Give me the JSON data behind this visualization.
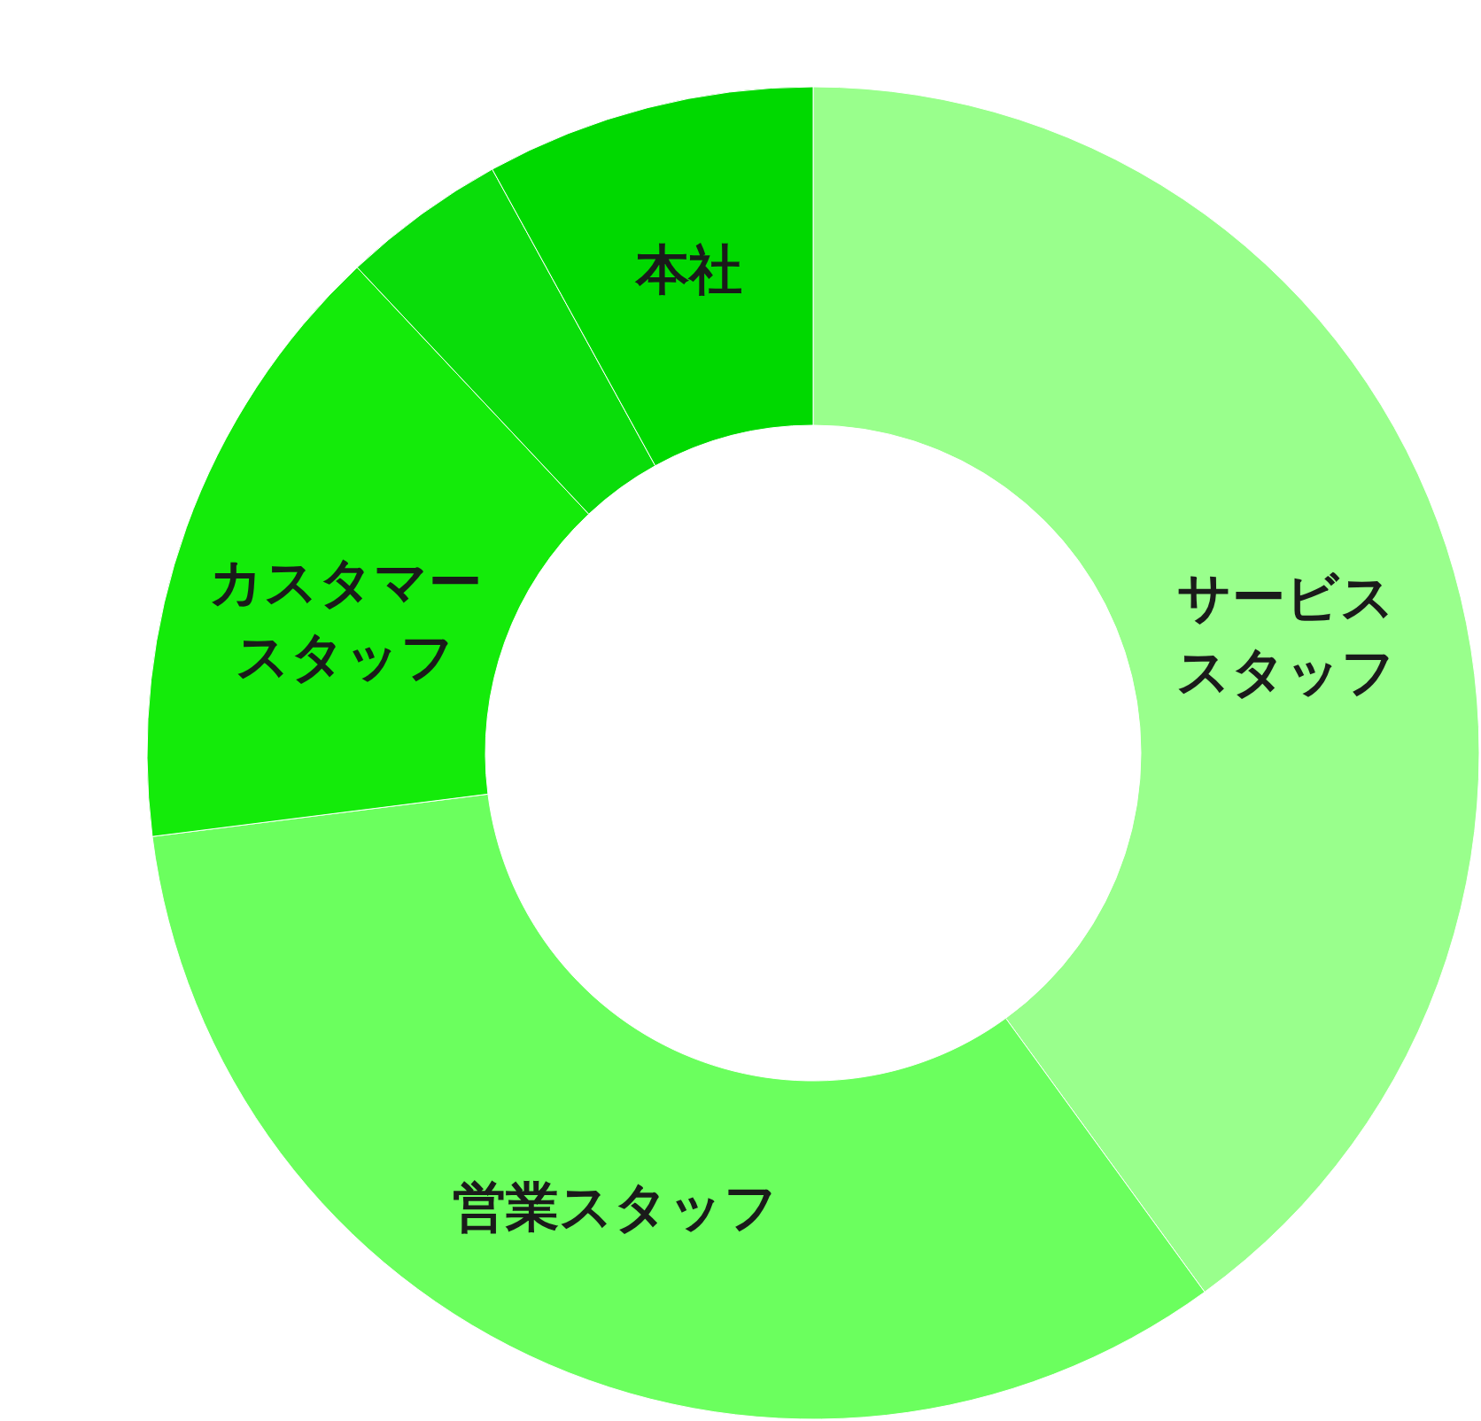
{
  "chart_data": {
    "type": "donut",
    "categories": [
      "サービススタッフ",
      "営業スタッフ",
      "カスタマースタッフ",
      null,
      "本社"
    ],
    "values": [
      40,
      33,
      15,
      4,
      8
    ],
    "colors": [
      "#99ff8c",
      "#6bff5e",
      "#14eb0a",
      "#0add0a",
      "#00d900"
    ]
  }
}
